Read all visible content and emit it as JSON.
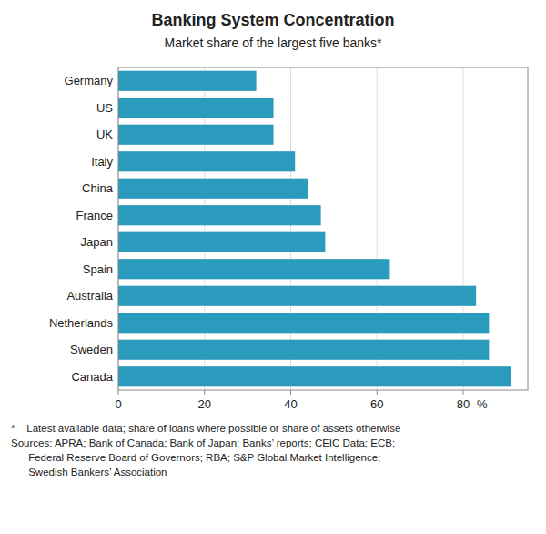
{
  "chart_data": {
    "type": "bar",
    "orientation": "horizontal",
    "title": "Banking System Concentration",
    "subtitle": "Market share of the largest five banks*",
    "categories": [
      "Germany",
      "US",
      "UK",
      "Italy",
      "China",
      "France",
      "Japan",
      "Spain",
      "Australia",
      "Netherlands",
      "Sweden",
      "Canada"
    ],
    "values": [
      32,
      36,
      36,
      41,
      44,
      47,
      48,
      63,
      83,
      86,
      86,
      91
    ],
    "color": "#2a9abd",
    "xlim": [
      0,
      95
    ],
    "xticks": [
      0,
      20,
      40,
      60,
      80
    ],
    "x_label": "%",
    "grid": true,
    "footnotes": [
      "*    Latest available data; share of loans where possible or share of assets otherwise",
      "Sources: APRA; Bank of Canada; Bank of Japan; Banks’ reports; CEIC Data; ECB;",
      "      Federal Reserve Board of Governors; RBA; S&P Global Market Intelligence;",
      "      Swedish Bankers’ Association"
    ]
  }
}
